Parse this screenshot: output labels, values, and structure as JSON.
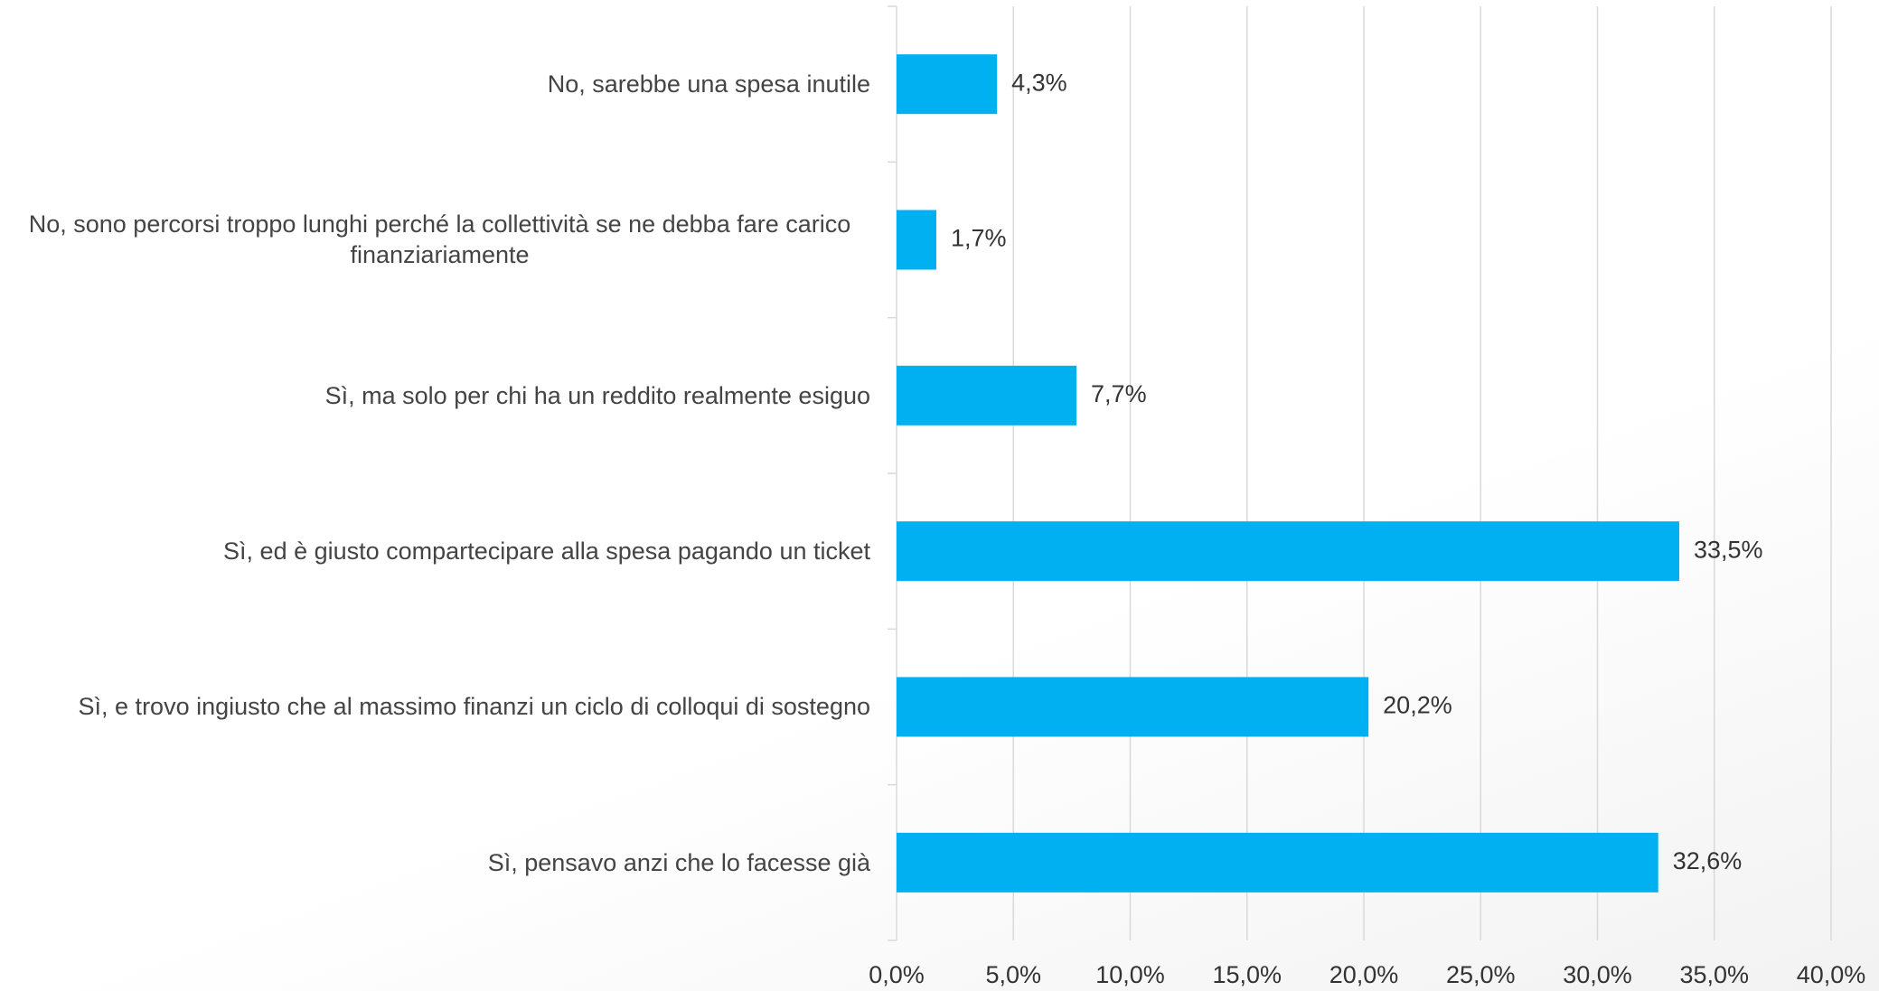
{
  "chart_data": {
    "type": "bar",
    "orientation": "horizontal",
    "categories": [
      "No, sarebbe una spesa inutile",
      "No, sono percorsi troppo lunghi perché la collettività se ne debba fare carico finanziariamente",
      "Sì, ma solo per chi ha un reddito realmente esiguo",
      "Sì, ed è giusto compartecipare alla spesa pagando un ticket",
      "Sì, e trovo ingiusto che al massimo finanzi un ciclo di colloqui di sostegno",
      "Sì, pensavo anzi che lo facesse già"
    ],
    "values": [
      4.3,
      1.7,
      7.7,
      33.5,
      20.2,
      32.6
    ],
    "value_labels": [
      "4,3%",
      "1,7%",
      "7,7%",
      "33,5%",
      "20,2%",
      "32,6%"
    ],
    "color": "#00b0f0",
    "xlim": [
      0,
      40
    ],
    "xticks": [
      {
        "value": 0,
        "label": "0,0%"
      },
      {
        "value": 5,
        "label": "5,0%"
      },
      {
        "value": 10,
        "label": "10,0%"
      },
      {
        "value": 15,
        "label": "15,0%"
      },
      {
        "value": 20,
        "label": "20,0%"
      },
      {
        "value": 25,
        "label": "25,0%"
      },
      {
        "value": 30,
        "label": "30,0%"
      },
      {
        "value": 35,
        "label": "35,0%"
      },
      {
        "value": 40,
        "label": "40,0%"
      }
    ],
    "grid": true
  }
}
